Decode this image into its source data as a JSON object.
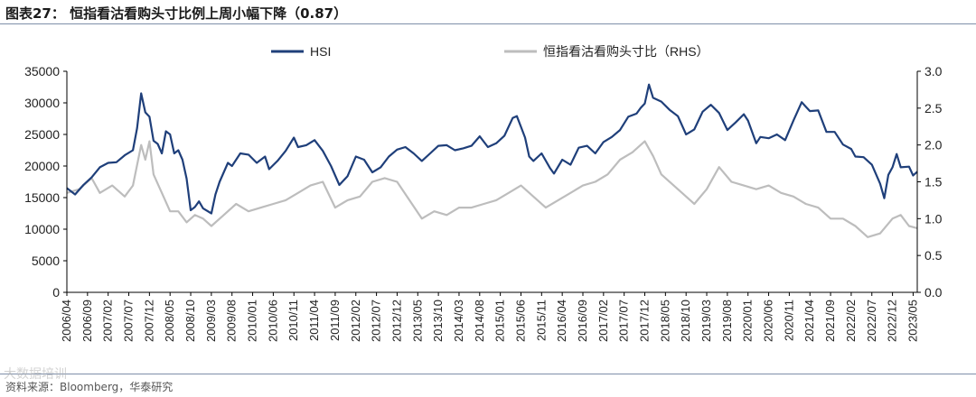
{
  "header": {
    "title": "图表27：  恒指看沽看购头寸比例上周小幅下降（0.87）"
  },
  "footer": {
    "source": "资料来源：Bloomberg，华泰研究",
    "watermark": "大数据培训"
  },
  "colors": {
    "hsi": "#1f3f7a",
    "ratio": "#bdbdbd",
    "rule": "#7f8fa9"
  },
  "chart_data": {
    "type": "line",
    "title": "恒指看沽看购头寸比例上周小幅下降（0.87）",
    "legend": [
      "HSI",
      "恒指看沽看购头寸比（RHS）"
    ],
    "legend_position": "top-center",
    "y_left": {
      "min": 0,
      "max": 35000,
      "ticks": [
        "0",
        "5000",
        "10000",
        "15000",
        "20000",
        "25000",
        "30000",
        "35000"
      ]
    },
    "y_right": {
      "min": 0,
      "max": 3.0,
      "ticks": [
        "0.0",
        "0.5",
        "1.0",
        "1.5",
        "2.0",
        "2.5",
        "3.0"
      ]
    },
    "x_ticks": [
      "2006/04",
      "2006/09",
      "2007/02",
      "2007/07",
      "2007/12",
      "2008/05",
      "2008/10",
      "2009/03",
      "2009/08",
      "2010/01",
      "2010/06",
      "2010/11",
      "2011/04",
      "2011/09",
      "2012/02",
      "2012/07",
      "2012/12",
      "2013/05",
      "2013/10",
      "2014/03",
      "2014/08",
      "2015/01",
      "2015/06",
      "2015/11",
      "2016/04",
      "2016/09",
      "2017/02",
      "2017/07",
      "2017/12",
      "2018/05",
      "2018/10",
      "2019/03",
      "2019/08",
      "2020/01",
      "2020/06",
      "2020/11",
      "2021/04",
      "2021/09",
      "2022/02",
      "2022/07",
      "2022/12",
      "2023/05"
    ],
    "x_range": [
      "2006/04",
      "2023/06"
    ],
    "series": [
      {
        "name": "HSI",
        "axis": "left",
        "points": [
          [
            "2006/04",
            16500
          ],
          [
            "2006/06",
            15500
          ],
          [
            "2006/08",
            17000
          ],
          [
            "2006/10",
            18200
          ],
          [
            "2006/12",
            19800
          ],
          [
            "2007/02",
            20500
          ],
          [
            "2007/04",
            20600
          ],
          [
            "2007/06",
            21700
          ],
          [
            "2007/08",
            22500
          ],
          [
            "2007/09",
            26000
          ],
          [
            "2007/10",
            31500
          ],
          [
            "2007/11",
            28500
          ],
          [
            "2007/12",
            27800
          ],
          [
            "2008/01",
            24000
          ],
          [
            "2008/02",
            23500
          ],
          [
            "2008/03",
            22000
          ],
          [
            "2008/04",
            25500
          ],
          [
            "2008/05",
            25000
          ],
          [
            "2008/06",
            22000
          ],
          [
            "2008/07",
            22500
          ],
          [
            "2008/08",
            21000
          ],
          [
            "2008/09",
            18000
          ],
          [
            "2008/10",
            13000
          ],
          [
            "2008/11",
            13500
          ],
          [
            "2008/12",
            14400
          ],
          [
            "2009/01",
            13300
          ],
          [
            "2009/03",
            12500
          ],
          [
            "2009/04",
            15500
          ],
          [
            "2009/05",
            17500
          ],
          [
            "2009/07",
            20500
          ],
          [
            "2009/08",
            20000
          ],
          [
            "2009/10",
            22000
          ],
          [
            "2009/12",
            21800
          ],
          [
            "2010/02",
            20500
          ],
          [
            "2010/04",
            21500
          ],
          [
            "2010/05",
            19500
          ],
          [
            "2010/07",
            20800
          ],
          [
            "2010/09",
            22400
          ],
          [
            "2010/11",
            24500
          ],
          [
            "2010/12",
            23000
          ],
          [
            "2011/02",
            23300
          ],
          [
            "2011/04",
            24100
          ],
          [
            "2011/06",
            22400
          ],
          [
            "2011/08",
            20000
          ],
          [
            "2011/10",
            17000
          ],
          [
            "2011/12",
            18400
          ],
          [
            "2012/02",
            21500
          ],
          [
            "2012/04",
            21000
          ],
          [
            "2012/06",
            19000
          ],
          [
            "2012/08",
            19800
          ],
          [
            "2012/10",
            21500
          ],
          [
            "2012/12",
            22600
          ],
          [
            "2013/02",
            23000
          ],
          [
            "2013/04",
            22000
          ],
          [
            "2013/06",
            20800
          ],
          [
            "2013/08",
            22000
          ],
          [
            "2013/10",
            23200
          ],
          [
            "2013/12",
            23300
          ],
          [
            "2014/02",
            22500
          ],
          [
            "2014/04",
            22800
          ],
          [
            "2014/06",
            23200
          ],
          [
            "2014/08",
            24700
          ],
          [
            "2014/10",
            23000
          ],
          [
            "2014/12",
            23600
          ],
          [
            "2015/02",
            24800
          ],
          [
            "2015/04",
            27600
          ],
          [
            "2015/05",
            27900
          ],
          [
            "2015/06",
            26200
          ],
          [
            "2015/07",
            24500
          ],
          [
            "2015/08",
            21500
          ],
          [
            "2015/09",
            20800
          ],
          [
            "2015/11",
            22000
          ],
          [
            "2016/01",
            19700
          ],
          [
            "2016/02",
            18800
          ],
          [
            "2016/04",
            21000
          ],
          [
            "2016/06",
            20200
          ],
          [
            "2016/08",
            22900
          ],
          [
            "2016/10",
            23200
          ],
          [
            "2016/12",
            22000
          ],
          [
            "2017/02",
            23800
          ],
          [
            "2017/04",
            24600
          ],
          [
            "2017/06",
            25700
          ],
          [
            "2017/08",
            27800
          ],
          [
            "2017/10",
            28300
          ],
          [
            "2017/11",
            29200
          ],
          [
            "2017/12",
            29900
          ],
          [
            "2018/01",
            32900
          ],
          [
            "2018/02",
            30800
          ],
          [
            "2018/04",
            30200
          ],
          [
            "2018/06",
            28900
          ],
          [
            "2018/08",
            27900
          ],
          [
            "2018/10",
            25000
          ],
          [
            "2018/12",
            25800
          ],
          [
            "2019/02",
            28600
          ],
          [
            "2019/04",
            29700
          ],
          [
            "2019/06",
            28400
          ],
          [
            "2019/08",
            25700
          ],
          [
            "2019/10",
            26900
          ],
          [
            "2019/12",
            28200
          ],
          [
            "2020/01",
            27200
          ],
          [
            "2020/03",
            23600
          ],
          [
            "2020/04",
            24600
          ],
          [
            "2020/06",
            24400
          ],
          [
            "2020/08",
            25000
          ],
          [
            "2020/10",
            24100
          ],
          [
            "2020/12",
            27200
          ],
          [
            "2021/02",
            30100
          ],
          [
            "2021/04",
            28700
          ],
          [
            "2021/06",
            28800
          ],
          [
            "2021/08",
            25400
          ],
          [
            "2021/10",
            25400
          ],
          [
            "2021/12",
            23400
          ],
          [
            "2022/02",
            22700
          ],
          [
            "2022/03",
            21500
          ],
          [
            "2022/05",
            21400
          ],
          [
            "2022/07",
            20200
          ],
          [
            "2022/09",
            17200
          ],
          [
            "2022/10",
            14900
          ],
          [
            "2022/11",
            18600
          ],
          [
            "2022/12",
            19800
          ],
          [
            "2023/01",
            21900
          ],
          [
            "2023/02",
            19800
          ],
          [
            "2023/04",
            19900
          ],
          [
            "2023/05",
            18500
          ],
          [
            "2023/06",
            19100
          ]
        ]
      },
      {
        "name": "恒指看沽看购头寸比（RHS）",
        "axis": "right",
        "points": [
          [
            "2006/04",
            1.35
          ],
          [
            "2006/07",
            1.4
          ],
          [
            "2006/10",
            1.55
          ],
          [
            "2006/12",
            1.35
          ],
          [
            "2007/03",
            1.45
          ],
          [
            "2007/06",
            1.3
          ],
          [
            "2007/08",
            1.45
          ],
          [
            "2007/10",
            2.0
          ],
          [
            "2007/11",
            1.8
          ],
          [
            "2007/12",
            2.05
          ],
          [
            "2008/01",
            1.6
          ],
          [
            "2008/03",
            1.35
          ],
          [
            "2008/05",
            1.1
          ],
          [
            "2008/07",
            1.1
          ],
          [
            "2008/09",
            0.95
          ],
          [
            "2008/11",
            1.05
          ],
          [
            "2009/01",
            1.0
          ],
          [
            "2009/03",
            0.9
          ],
          [
            "2009/06",
            1.05
          ],
          [
            "2009/09",
            1.2
          ],
          [
            "2009/12",
            1.1
          ],
          [
            "2010/03",
            1.15
          ],
          [
            "2010/06",
            1.2
          ],
          [
            "2010/09",
            1.25
          ],
          [
            "2010/12",
            1.35
          ],
          [
            "2011/03",
            1.45
          ],
          [
            "2011/06",
            1.5
          ],
          [
            "2011/09",
            1.15
          ],
          [
            "2011/12",
            1.25
          ],
          [
            "2012/03",
            1.3
          ],
          [
            "2012/06",
            1.5
          ],
          [
            "2012/09",
            1.55
          ],
          [
            "2012/12",
            1.5
          ],
          [
            "2013/03",
            1.25
          ],
          [
            "2013/06",
            1.0
          ],
          [
            "2013/09",
            1.1
          ],
          [
            "2013/12",
            1.05
          ],
          [
            "2014/03",
            1.15
          ],
          [
            "2014/06",
            1.15
          ],
          [
            "2014/09",
            1.2
          ],
          [
            "2014/12",
            1.25
          ],
          [
            "2015/03",
            1.35
          ],
          [
            "2015/06",
            1.45
          ],
          [
            "2015/09",
            1.3
          ],
          [
            "2015/12",
            1.15
          ],
          [
            "2016/03",
            1.25
          ],
          [
            "2016/06",
            1.35
          ],
          [
            "2016/09",
            1.45
          ],
          [
            "2016/12",
            1.5
          ],
          [
            "2017/03",
            1.6
          ],
          [
            "2017/06",
            1.8
          ],
          [
            "2017/09",
            1.9
          ],
          [
            "2017/12",
            2.05
          ],
          [
            "2018/02",
            1.85
          ],
          [
            "2018/04",
            1.6
          ],
          [
            "2018/07",
            1.45
          ],
          [
            "2018/10",
            1.3
          ],
          [
            "2018/12",
            1.2
          ],
          [
            "2019/03",
            1.4
          ],
          [
            "2019/06",
            1.7
          ],
          [
            "2019/09",
            1.5
          ],
          [
            "2019/12",
            1.45
          ],
          [
            "2020/03",
            1.4
          ],
          [
            "2020/06",
            1.45
          ],
          [
            "2020/09",
            1.35
          ],
          [
            "2020/12",
            1.3
          ],
          [
            "2021/03",
            1.2
          ],
          [
            "2021/06",
            1.15
          ],
          [
            "2021/09",
            1.0
          ],
          [
            "2021/12",
            1.0
          ],
          [
            "2022/03",
            0.9
          ],
          [
            "2022/06",
            0.75
          ],
          [
            "2022/09",
            0.8
          ],
          [
            "2022/12",
            1.0
          ],
          [
            "2023/02",
            1.05
          ],
          [
            "2023/04",
            0.9
          ],
          [
            "2023/06",
            0.87
          ]
        ]
      }
    ]
  }
}
